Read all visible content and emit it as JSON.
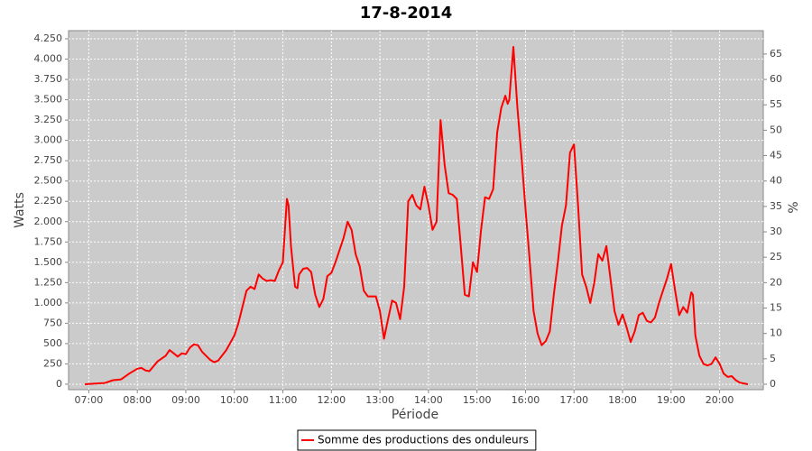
{
  "chart_data": {
    "type": "line",
    "title": "17-8-2014",
    "x_label": "Période",
    "y_label": "Watts",
    "y2_label": "%",
    "grid": true,
    "legend": "bottom",
    "background": "#cbcbcb",
    "xlim": [
      "06:35",
      "20:54"
    ],
    "xticks": [
      "07:00",
      "08:00",
      "09:00",
      "10:00",
      "11:00",
      "12:00",
      "13:00",
      "14:00",
      "15:00",
      "16:00",
      "17:00",
      "18:00",
      "19:00",
      "20:00"
    ],
    "ylim": [
      -67,
      4350
    ],
    "yticks": [
      0,
      250,
      500,
      {
        "value": 750,
        "label": "750"
      },
      {
        "value": 1000,
        "label": "1.000"
      },
      {
        "value": 1250,
        "label": "1.250"
      },
      {
        "value": 1500,
        "label": "1.500"
      },
      {
        "value": 1750,
        "label": "1.750"
      },
      {
        "value": 2000,
        "label": "2.000"
      },
      {
        "value": 2250,
        "label": "2.250"
      },
      {
        "value": 2500,
        "label": "2.500"
      },
      {
        "value": 2750,
        "label": "2.750"
      },
      {
        "value": 3000,
        "label": "3.000"
      },
      {
        "value": 3250,
        "label": "3.250"
      },
      {
        "value": 3500,
        "label": "3.500"
      },
      {
        "value": 3750,
        "label": "3.750"
      },
      {
        "value": 4000,
        "label": "4.000"
      },
      {
        "value": 4250,
        "label": "4.250"
      }
    ],
    "y2lim": [
      -1.07,
      69.6
    ],
    "y2ticks": [
      0,
      5,
      10,
      15,
      20,
      25,
      30,
      35,
      40,
      45,
      50,
      55,
      60,
      65
    ],
    "x": [
      "06:55",
      "07:10",
      "07:20",
      "07:30",
      "07:40",
      "07:50",
      "08:00",
      "08:05",
      "08:10",
      "08:15",
      "08:25",
      "08:35",
      "08:40",
      "08:45",
      "08:50",
      "08:55",
      "09:00",
      "09:05",
      "09:10",
      "09:15",
      "09:20",
      "09:30",
      "09:35",
      "09:40",
      "09:50",
      "10:00",
      "10:05",
      "10:10",
      "10:15",
      "10:20",
      "10:25",
      "10:30",
      "10:35",
      "10:40",
      "10:45",
      "10:50",
      "10:55",
      "11:00",
      "11:05",
      "11:07",
      "11:10",
      "11:15",
      "11:18",
      "11:20",
      "11:25",
      "11:30",
      "11:35",
      "11:40",
      "11:45",
      "11:50",
      "11:55",
      "12:00",
      "12:05",
      "12:15",
      "12:20",
      "12:25",
      "12:30",
      "12:35",
      "12:40",
      "12:45",
      "12:55",
      "13:00",
      "13:05",
      "13:10",
      "13:15",
      "13:20",
      "13:25",
      "13:30",
      "13:35",
      "13:40",
      "13:45",
      "13:50",
      "13:55",
      "14:00",
      "14:05",
      "14:10",
      "14:15",
      "14:20",
      "14:25",
      "14:30",
      "14:35",
      "14:40",
      "14:45",
      "14:50",
      "14:55",
      "15:00",
      "15:05",
      "15:10",
      "15:15",
      "15:20",
      "15:25",
      "15:30",
      "15:35",
      "15:38",
      "15:40",
      "15:45",
      "15:50",
      "15:55",
      "16:00",
      "16:05",
      "16:10",
      "16:15",
      "16:20",
      "16:25",
      "16:30",
      "16:35",
      "16:40",
      "16:45",
      "16:50",
      "16:55",
      "17:00",
      "17:05",
      "17:10",
      "17:15",
      "17:20",
      "17:25",
      "17:30",
      "17:35",
      "17:40",
      "17:45",
      "17:50",
      "17:55",
      "18:00",
      "18:05",
      "18:10",
      "18:15",
      "18:20",
      "18:25",
      "18:30",
      "18:35",
      "18:40",
      "18:45",
      "18:50",
      "18:55",
      "19:00",
      "19:05",
      "19:10",
      "19:15",
      "19:20",
      "19:25",
      "19:27",
      "19:30",
      "19:35",
      "19:40",
      "19:45",
      "19:50",
      "19:55",
      "20:00",
      "20:05",
      "20:10",
      "20:15",
      "20:20",
      "20:25",
      "20:30",
      "20:35"
    ],
    "series": [
      {
        "name": "Somme des productions des onduleurs",
        "color": "#ff0000",
        "values": [
          0,
          10,
          15,
          50,
          60,
          130,
          190,
          200,
          170,
          160,
          280,
          350,
          420,
          380,
          340,
          380,
          370,
          450,
          490,
          480,
          400,
          300,
          270,
          290,
          420,
          600,
          750,
          950,
          1150,
          1200,
          1170,
          1350,
          1300,
          1270,
          1280,
          1270,
          1400,
          1500,
          2280,
          2200,
          1700,
          1200,
          1180,
          1350,
          1420,
          1430,
          1380,
          1100,
          950,
          1050,
          1330,
          1370,
          1500,
          1800,
          2000,
          1900,
          1600,
          1450,
          1150,
          1080,
          1080,
          900,
          560,
          800,
          1030,
          1000,
          800,
          1200,
          2250,
          2330,
          2200,
          2150,
          2430,
          2200,
          1900,
          2000,
          3250,
          2700,
          2350,
          2330,
          2280,
          1700,
          1100,
          1080,
          1500,
          1380,
          1900,
          2300,
          2280,
          2400,
          3100,
          3400,
          3550,
          3450,
          3500,
          4150,
          3400,
          2800,
          2150,
          1550,
          900,
          620,
          480,
          530,
          650,
          1100,
          1500,
          1950,
          2200,
          2850,
          2950,
          2200,
          1350,
          1200,
          1000,
          1250,
          1600,
          1520,
          1700,
          1300,
          900,
          730,
          860,
          700,
          520,
          650,
          850,
          880,
          780,
          760,
          820,
          1000,
          1150,
          1300,
          1480,
          1150,
          850,
          950,
          880,
          1130,
          1100,
          600,
          350,
          250,
          230,
          250,
          330,
          250,
          130,
          90,
          100,
          50,
          20,
          10,
          0
        ]
      }
    ]
  }
}
